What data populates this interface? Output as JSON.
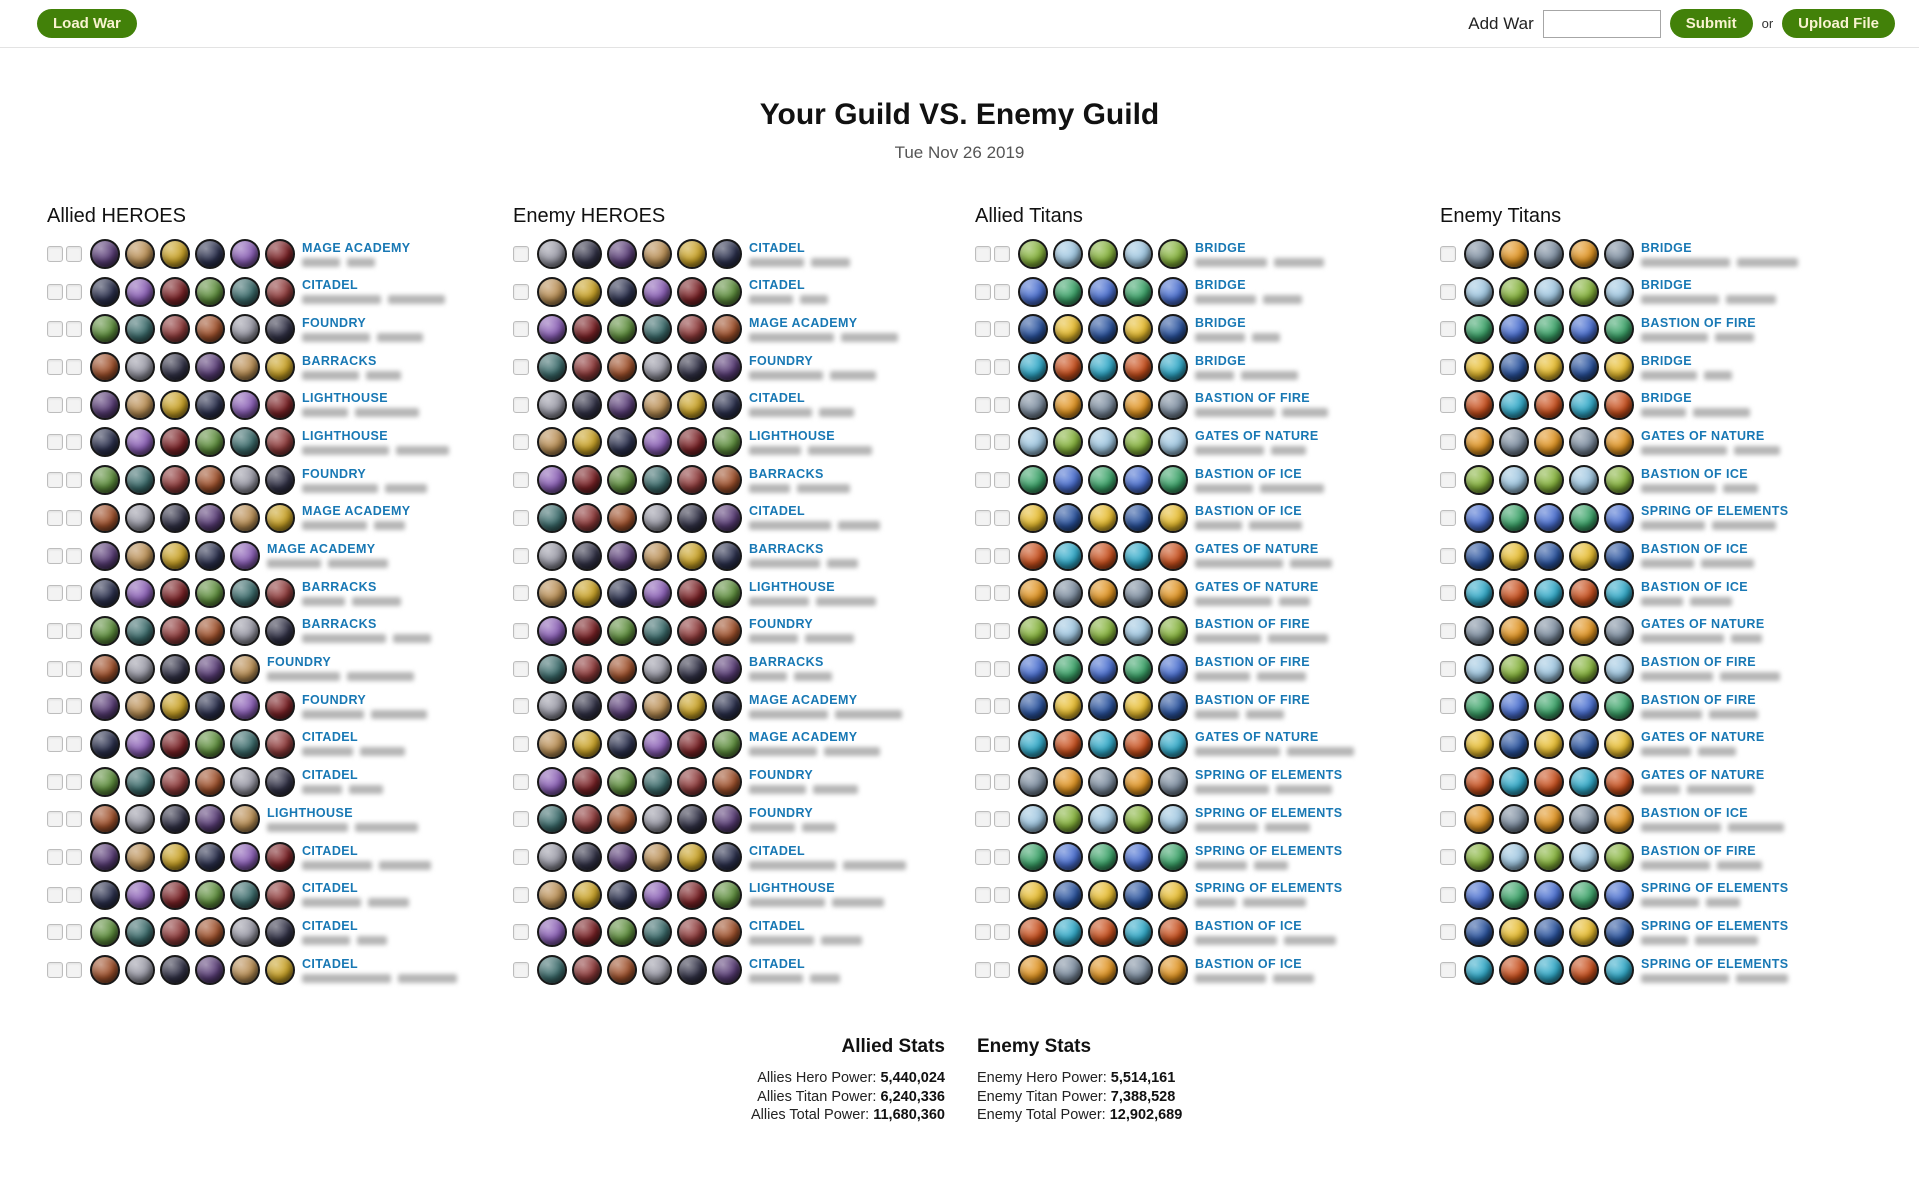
{
  "topbar": {
    "load_war": "Load War",
    "add_war_label": "Add War",
    "add_war_value": "",
    "submit": "Submit",
    "or": "or",
    "upload_file": "Upload File"
  },
  "header": {
    "title": "Your Guild VS. Enemy Guild",
    "date": "Tue Nov 26 2019"
  },
  "colors": {
    "button_green": "#428109",
    "button_text": "#f9f3d0",
    "label_blue": "#1878b4",
    "hero_palette": [
      "#5b3f78",
      "#7c2428",
      "#9a9aa6",
      "#2e3350",
      "#8e3b3b",
      "#b98f55",
      "#5f8f3e",
      "#35354a",
      "#8a5fb5",
      "#a0522d",
      "#c9a227",
      "#3e6e6e"
    ],
    "titan_palette": [
      "#2c55a0",
      "#e09422",
      "#3da46a",
      "#31a9c8",
      "#86b33c",
      "#e6bb2e",
      "#7e8ea0",
      "#4a6fd0",
      "#c8501e",
      "#9fc6e0"
    ]
  },
  "columns": [
    {
      "title": "Allied HEROES",
      "kind": "hero",
      "checkboxes": 2,
      "rows": [
        {
          "building": "MAGE ACADEMY",
          "avatars": 6
        },
        {
          "building": "CITADEL",
          "avatars": 6
        },
        {
          "building": "FOUNDRY",
          "avatars": 6
        },
        {
          "building": "BARRACKS",
          "avatars": 6
        },
        {
          "building": "LIGHTHOUSE",
          "avatars": 6
        },
        {
          "building": "LIGHTHOUSE",
          "avatars": 6
        },
        {
          "building": "FOUNDRY",
          "avatars": 6
        },
        {
          "building": "MAGE ACADEMY",
          "avatars": 6
        },
        {
          "building": "MAGE ACADEMY",
          "avatars": 5
        },
        {
          "building": "BARRACKS",
          "avatars": 6
        },
        {
          "building": "BARRACKS",
          "avatars": 6
        },
        {
          "building": "FOUNDRY",
          "avatars": 5
        },
        {
          "building": "FOUNDRY",
          "avatars": 6
        },
        {
          "building": "CITADEL",
          "avatars": 6
        },
        {
          "building": "CITADEL",
          "avatars": 6
        },
        {
          "building": "LIGHTHOUSE",
          "avatars": 5
        },
        {
          "building": "CITADEL",
          "avatars": 6
        },
        {
          "building": "CITADEL",
          "avatars": 6
        },
        {
          "building": "CITADEL",
          "avatars": 6
        },
        {
          "building": "CITADEL",
          "avatars": 6
        }
      ]
    },
    {
      "title": "Enemy HEROES",
      "kind": "hero",
      "checkboxes": 1,
      "rows": [
        {
          "building": "CITADEL",
          "avatars": 6
        },
        {
          "building": "CITADEL",
          "avatars": 6
        },
        {
          "building": "MAGE ACADEMY",
          "avatars": 6
        },
        {
          "building": "FOUNDRY",
          "avatars": 6
        },
        {
          "building": "CITADEL",
          "avatars": 6
        },
        {
          "building": "LIGHTHOUSE",
          "avatars": 6
        },
        {
          "building": "BARRACKS",
          "avatars": 6
        },
        {
          "building": "CITADEL",
          "avatars": 6
        },
        {
          "building": "BARRACKS",
          "avatars": 6
        },
        {
          "building": "LIGHTHOUSE",
          "avatars": 6
        },
        {
          "building": "FOUNDRY",
          "avatars": 6
        },
        {
          "building": "BARRACKS",
          "avatars": 6
        },
        {
          "building": "MAGE ACADEMY",
          "avatars": 6
        },
        {
          "building": "MAGE ACADEMY",
          "avatars": 6
        },
        {
          "building": "FOUNDRY",
          "avatars": 6
        },
        {
          "building": "FOUNDRY",
          "avatars": 6
        },
        {
          "building": "CITADEL",
          "avatars": 6
        },
        {
          "building": "LIGHTHOUSE",
          "avatars": 6
        },
        {
          "building": "CITADEL",
          "avatars": 6
        },
        {
          "building": "CITADEL",
          "avatars": 6
        }
      ]
    },
    {
      "title": "Allied Titans",
      "kind": "titan",
      "checkboxes": 2,
      "rows": [
        {
          "building": "BRIDGE",
          "avatars": 5
        },
        {
          "building": "BRIDGE",
          "avatars": 5
        },
        {
          "building": "BRIDGE",
          "avatars": 5
        },
        {
          "building": "BRIDGE",
          "avatars": 5
        },
        {
          "building": "BASTION OF FIRE",
          "avatars": 5
        },
        {
          "building": "GATES OF NATURE",
          "avatars": 5
        },
        {
          "building": "BASTION OF ICE",
          "avatars": 5
        },
        {
          "building": "BASTION OF ICE",
          "avatars": 5
        },
        {
          "building": "GATES OF NATURE",
          "avatars": 5
        },
        {
          "building": "GATES OF NATURE",
          "avatars": 5
        },
        {
          "building": "BASTION OF FIRE",
          "avatars": 5
        },
        {
          "building": "BASTION OF FIRE",
          "avatars": 5
        },
        {
          "building": "BASTION OF FIRE",
          "avatars": 5
        },
        {
          "building": "GATES OF NATURE",
          "avatars": 5
        },
        {
          "building": "SPRING OF ELEMENTS",
          "avatars": 5
        },
        {
          "building": "SPRING OF ELEMENTS",
          "avatars": 5
        },
        {
          "building": "SPRING OF ELEMENTS",
          "avatars": 5
        },
        {
          "building": "SPRING OF ELEMENTS",
          "avatars": 5
        },
        {
          "building": "BASTION OF ICE",
          "avatars": 5
        },
        {
          "building": "BASTION OF ICE",
          "avatars": 5
        }
      ]
    },
    {
      "title": "Enemy Titans",
      "kind": "titan",
      "checkboxes": 1,
      "rows": [
        {
          "building": "BRIDGE",
          "avatars": 5
        },
        {
          "building": "BRIDGE",
          "avatars": 5
        },
        {
          "building": "BASTION OF FIRE",
          "avatars": 5
        },
        {
          "building": "BRIDGE",
          "avatars": 5
        },
        {
          "building": "BRIDGE",
          "avatars": 5
        },
        {
          "building": "GATES OF NATURE",
          "avatars": 5
        },
        {
          "building": "BASTION OF ICE",
          "avatars": 5
        },
        {
          "building": "SPRING OF ELEMENTS",
          "avatars": 5
        },
        {
          "building": "BASTION OF ICE",
          "avatars": 5
        },
        {
          "building": "BASTION OF ICE",
          "avatars": 5
        },
        {
          "building": "GATES OF NATURE",
          "avatars": 5
        },
        {
          "building": "BASTION OF FIRE",
          "avatars": 5
        },
        {
          "building": "BASTION OF FIRE",
          "avatars": 5
        },
        {
          "building": "GATES OF NATURE",
          "avatars": 5
        },
        {
          "building": "GATES OF NATURE",
          "avatars": 5
        },
        {
          "building": "BASTION OF ICE",
          "avatars": 5
        },
        {
          "building": "BASTION OF FIRE",
          "avatars": 5
        },
        {
          "building": "SPRING OF ELEMENTS",
          "avatars": 5
        },
        {
          "building": "SPRING OF ELEMENTS",
          "avatars": 5
        },
        {
          "building": "SPRING OF ELEMENTS",
          "avatars": 5
        }
      ]
    }
  ],
  "stats": {
    "allied": {
      "title": "Allied Stats",
      "rows": [
        {
          "label": "Allies Hero Power:",
          "value": "5,440,024"
        },
        {
          "label": "Allies Titan Power:",
          "value": "6,240,336"
        },
        {
          "label": "Allies Total Power:",
          "value": "11,680,360"
        }
      ]
    },
    "enemy": {
      "title": "Enemy Stats",
      "rows": [
        {
          "label": "Enemy Hero Power:",
          "value": "5,514,161"
        },
        {
          "label": "Enemy Titan Power:",
          "value": "7,388,528"
        },
        {
          "label": "Enemy Total Power:",
          "value": "12,902,689"
        }
      ]
    }
  }
}
